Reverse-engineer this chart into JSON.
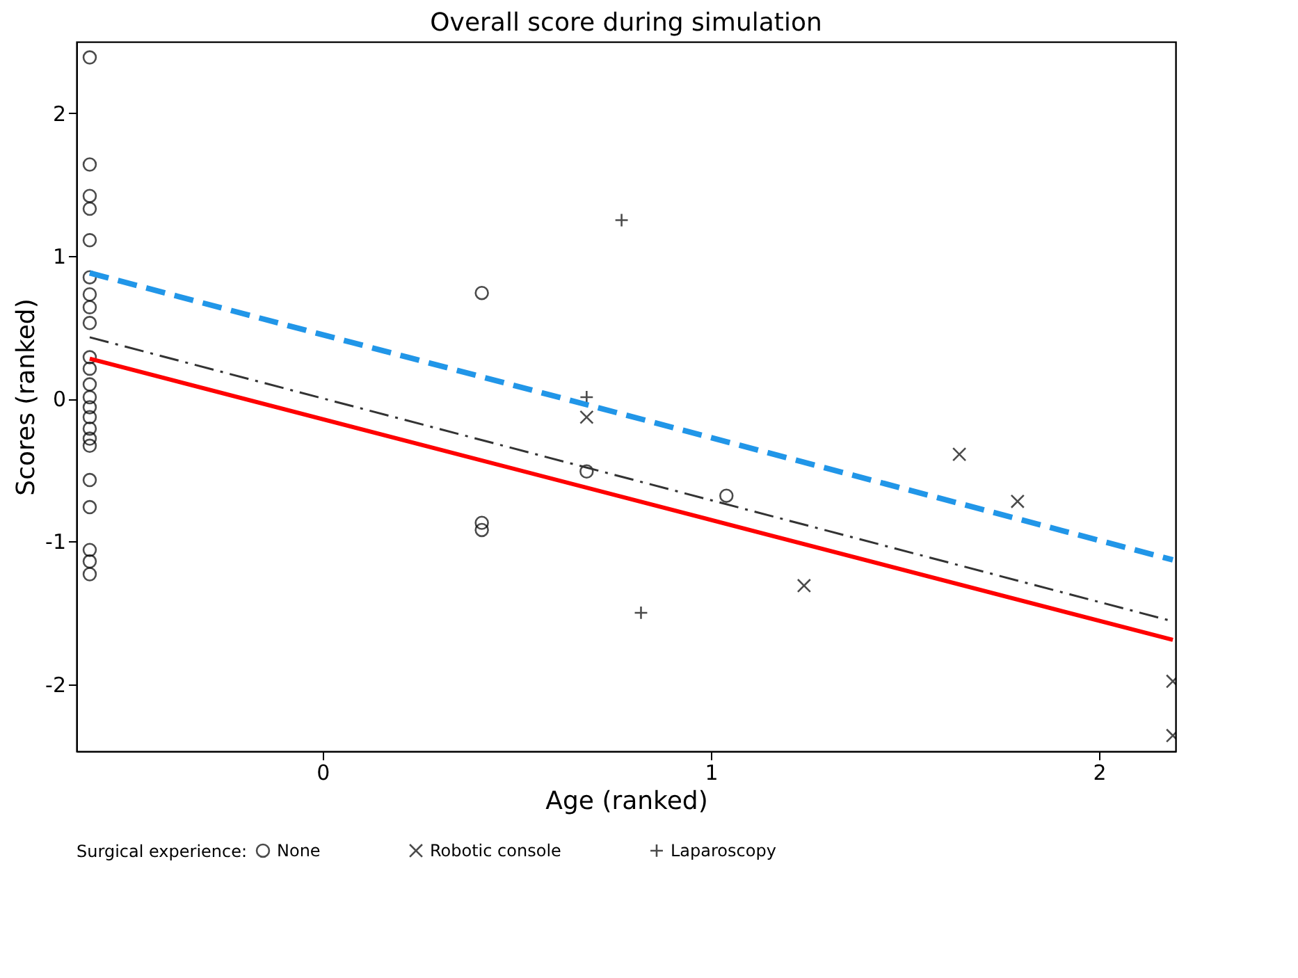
{
  "chart_data": {
    "type": "scatter",
    "title": "Overall score during simulation",
    "xlabel": "Age (ranked)",
    "ylabel": "Scores (ranked)",
    "legend_title": "Surgical experience:",
    "xlim": [
      -0.634,
      2.197
    ],
    "ylim": [
      -2.47,
      2.5
    ],
    "xticks": [
      0,
      1,
      2
    ],
    "yticks": [
      -2,
      -1,
      0,
      1,
      2
    ],
    "grid": false,
    "legend": "bottom",
    "series": [
      {
        "name": "None",
        "marker": "circle",
        "color": "#000000",
        "x": [
          -0.6,
          -0.6,
          -0.6,
          -0.6,
          -0.6,
          -0.6,
          -0.6,
          -0.6,
          -0.6,
          -0.6,
          -0.6,
          -0.6,
          -0.6,
          -0.6,
          -0.6,
          -0.6,
          -0.6,
          -0.6,
          -0.6,
          -0.6,
          -0.6,
          -0.6,
          -0.6,
          0.41,
          0.41,
          0.41,
          0.68,
          1.04
        ],
        "values": [
          2.39,
          1.64,
          1.42,
          1.33,
          1.11,
          0.85,
          0.73,
          0.64,
          0.53,
          0.29,
          0.21,
          0.1,
          0.01,
          -0.06,
          -0.13,
          -0.21,
          -0.28,
          -0.33,
          -0.57,
          -0.76,
          -1.06,
          -1.14,
          -1.23,
          0.74,
          -0.87,
          -0.92,
          -0.51,
          -0.68
        ]
      },
      {
        "name": "Robotic console",
        "marker": "cross",
        "color": "#000000",
        "x": [
          0.68,
          1.24,
          1.64,
          1.79,
          2.19,
          2.19
        ],
        "values": [
          -0.13,
          -1.31,
          -0.39,
          -0.72,
          -1.98,
          -2.36
        ]
      },
      {
        "name": "Laparoscopy",
        "marker": "plus",
        "color": "#000000",
        "x": [
          0.77,
          0.68,
          0.82
        ],
        "values": [
          1.25,
          0.01,
          -1.5
        ]
      },
      {
        "type": "line",
        "color": "#ff0000",
        "line_style": "solid",
        "x": [
          -0.6,
          2.19
        ],
        "values": [
          0.28,
          -1.69
        ]
      },
      {
        "type": "line",
        "color": "#2196e8",
        "line_style": "dashed",
        "x": [
          -0.6,
          2.19
        ],
        "values": [
          0.88,
          -1.13
        ]
      },
      {
        "type": "line",
        "color": "#333333",
        "line_style": "dashdot",
        "x": [
          -0.6,
          2.19
        ],
        "values": [
          0.43,
          -1.56
        ]
      }
    ]
  }
}
